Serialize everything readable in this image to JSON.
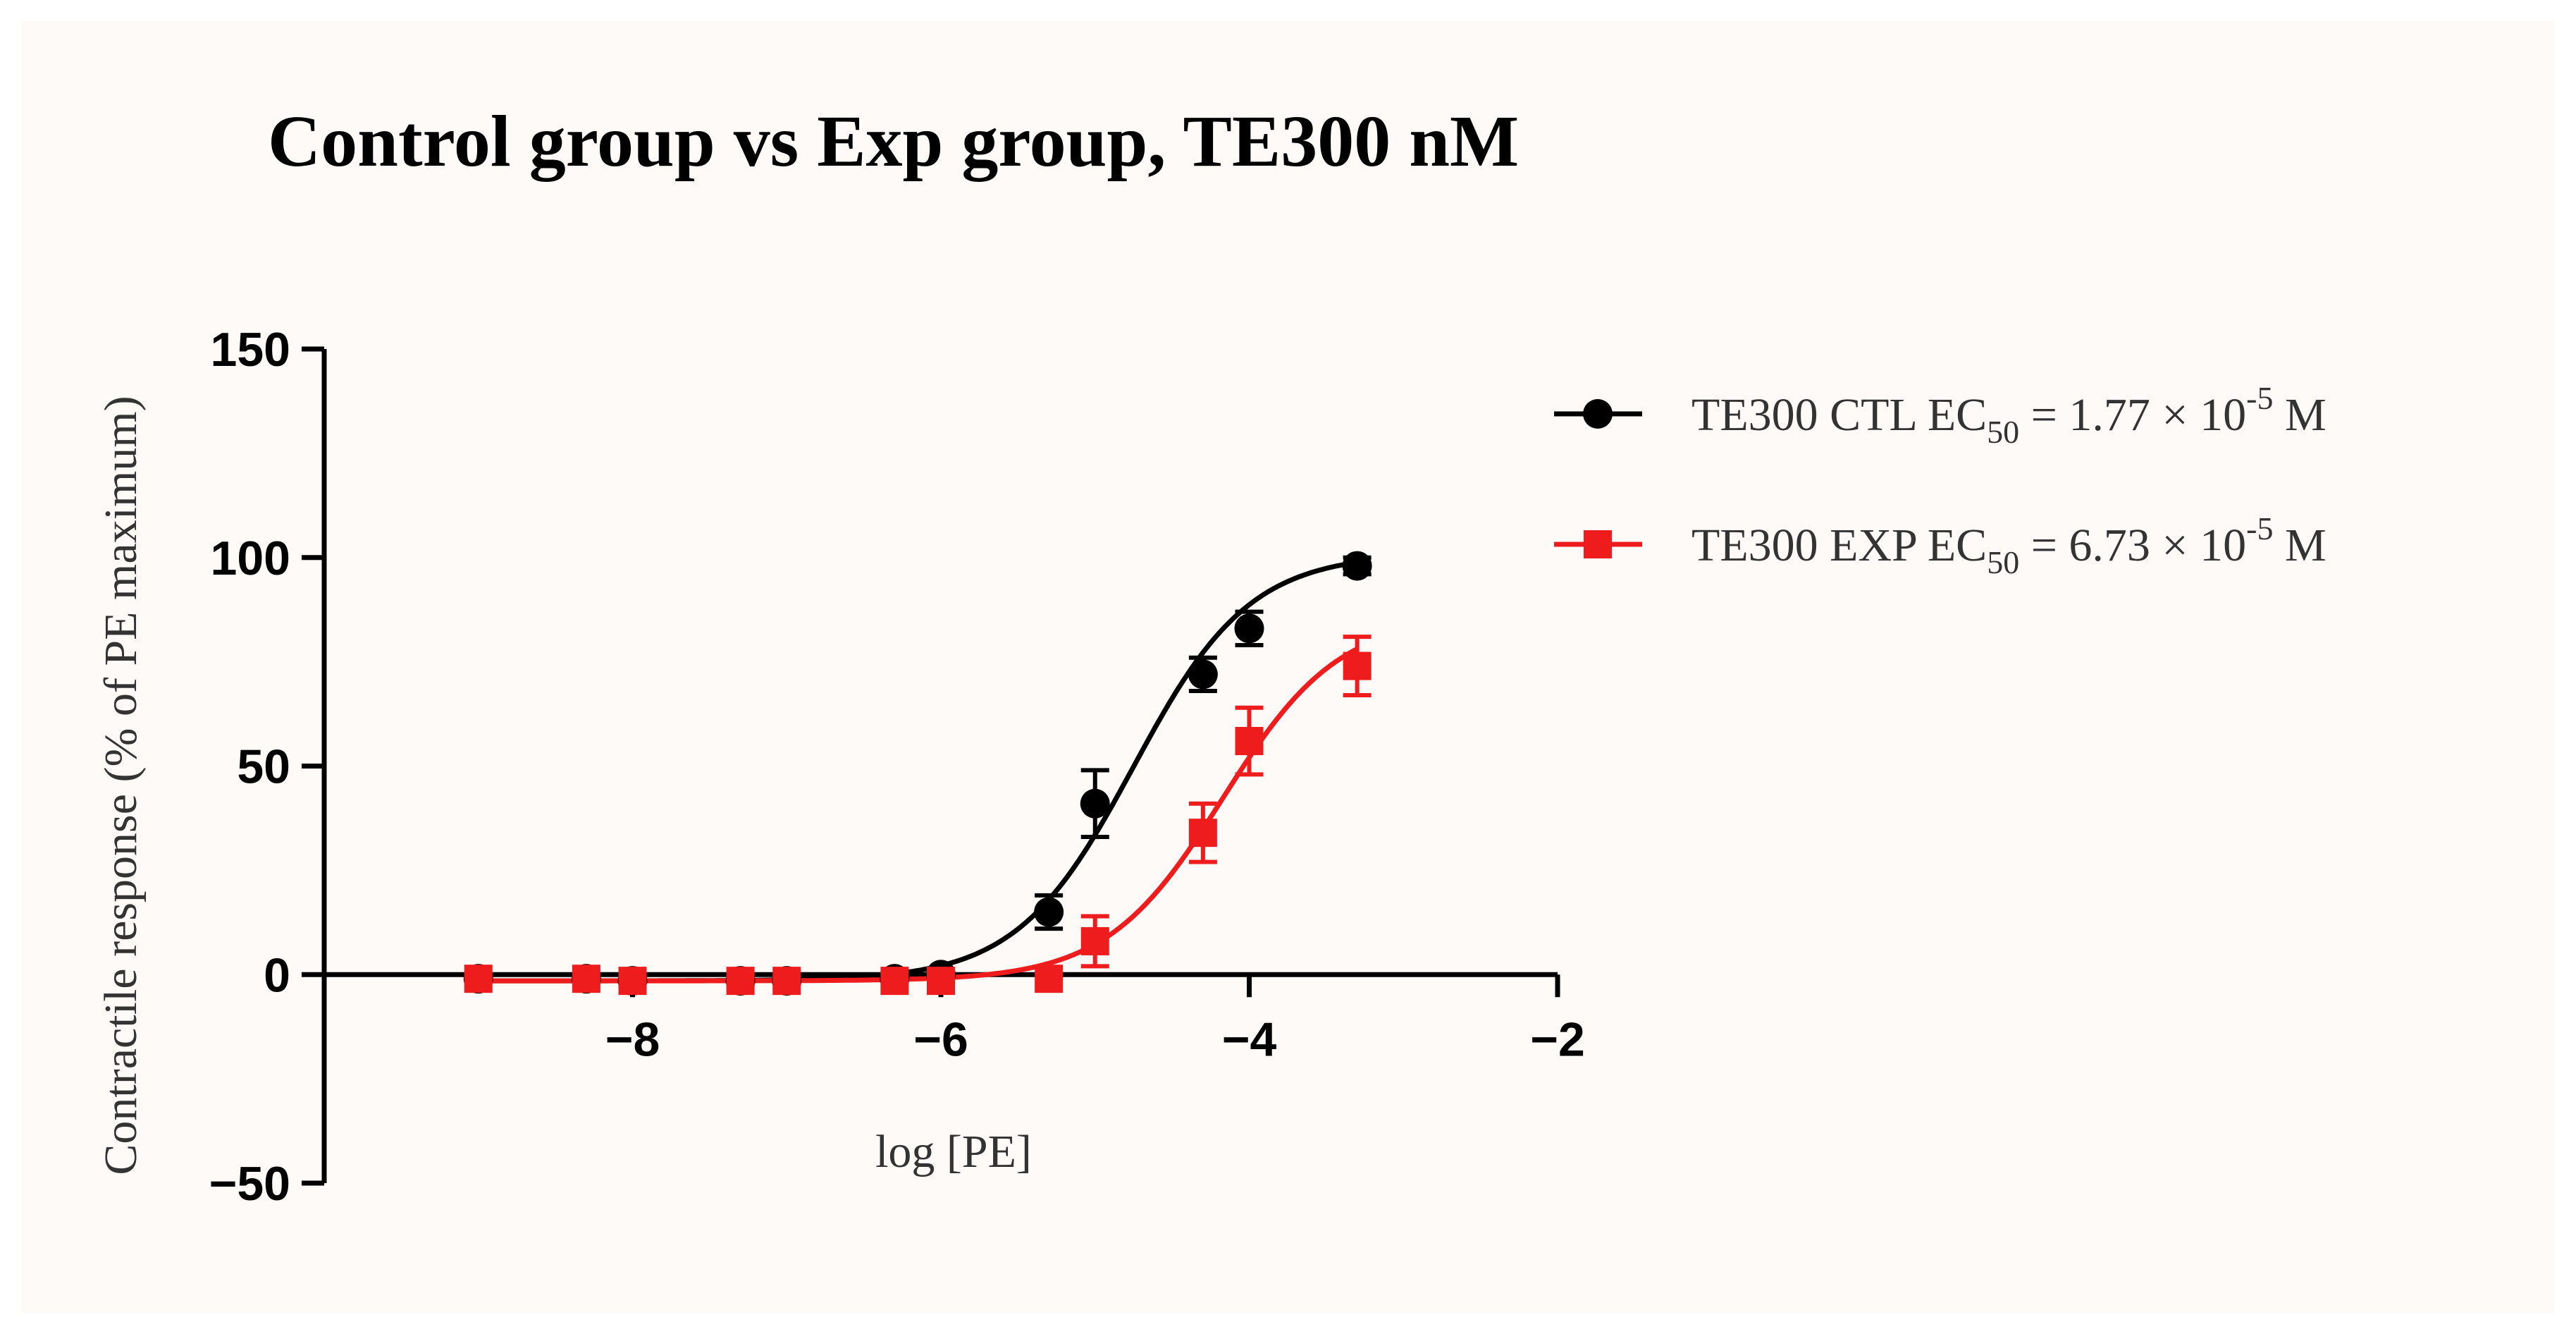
{
  "chart_data": {
    "type": "line",
    "title": "Control group vs Exp group, TE300 nM",
    "xlabel": "log [PE]",
    "ylabel": "Contractile response (% of PE maximum)",
    "xlim": [
      -10,
      -2
    ],
    "ylim": [
      -50,
      150
    ],
    "xticks": [
      -8,
      -6,
      -4,
      -2
    ],
    "xtick_labels": [
      "−8",
      "−6",
      "−4",
      "−2"
    ],
    "yticks": [
      -50,
      0,
      50,
      100,
      150
    ],
    "ytick_labels": [
      "−50",
      "0",
      "50",
      "100",
      "150"
    ],
    "legend_position": "top-right",
    "series": [
      {
        "name": "TE300 CTL",
        "legend": {
          "prefix": "TE300 CTL EC",
          "subscript": "50",
          "middle": " = 1.77 × 10",
          "exponent": "-5",
          "suffix": " M"
        },
        "color": "#000000",
        "marker": "circle",
        "x": [
          -9.0,
          -8.3,
          -8.0,
          -7.3,
          -7.0,
          -6.3,
          -6.0,
          -5.3,
          -5.0,
          -4.3,
          -4.0,
          -3.3
        ],
        "y": [
          -1,
          -1,
          -1.5,
          -1.5,
          -1.5,
          -1,
          0,
          15,
          41,
          72,
          83,
          98
        ],
        "error": [
          1,
          1,
          1,
          1,
          1,
          1,
          1,
          4,
          8,
          4,
          4,
          2
        ],
        "fit": {
          "bottom": -1.5,
          "top": 101,
          "log_ec50": -4.752,
          "hill": 1.15
        }
      },
      {
        "name": "TE300 EXP",
        "legend": {
          "prefix": "TE300 EXP EC",
          "subscript": "50",
          "middle": " = 6.73 × 10",
          "exponent": "-5",
          "suffix": " M"
        },
        "color": "#ee1c1c",
        "marker": "square",
        "x": [
          -9.0,
          -8.3,
          -8.0,
          -7.3,
          -7.0,
          -6.3,
          -6.0,
          -5.3,
          -5.0,
          -4.3,
          -4.0,
          -3.3
        ],
        "y": [
          -1,
          -1,
          -1.5,
          -1.5,
          -1.5,
          -1.5,
          -1.5,
          -1,
          8,
          34,
          56,
          74
        ],
        "error": [
          1,
          1,
          1,
          1,
          1,
          1,
          1,
          1,
          6,
          7,
          8,
          7
        ],
        "fit": {
          "bottom": -1.5,
          "top": 86,
          "log_ec50": -4.172,
          "hill": 1.15
        }
      }
    ]
  }
}
